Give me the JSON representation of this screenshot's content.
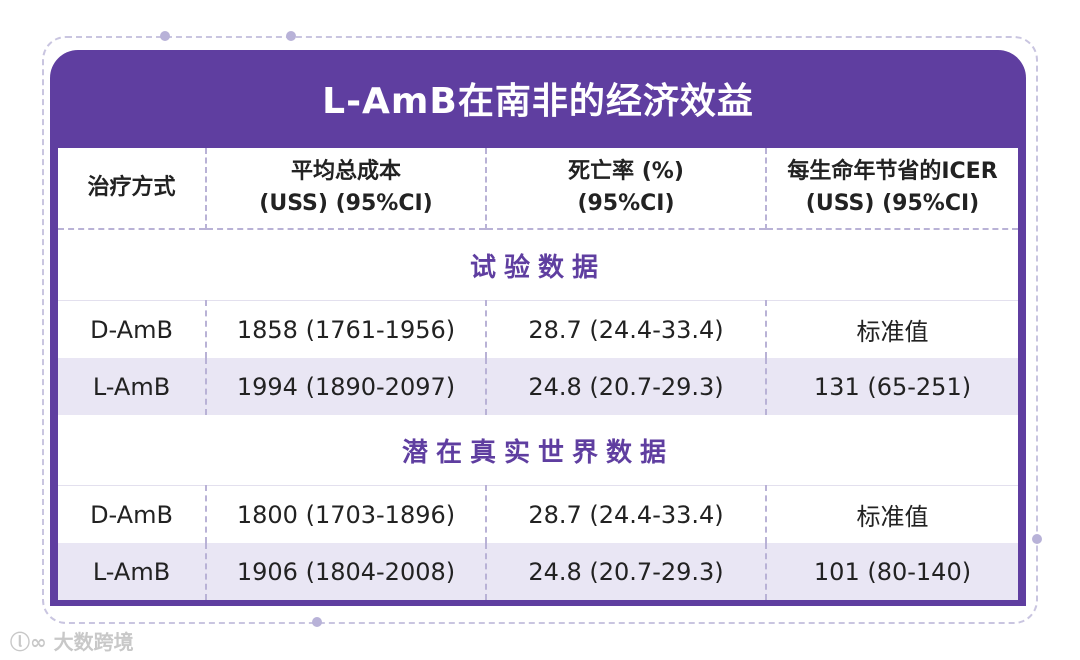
{
  "title": "L-AmB在南非的经济效益",
  "columns": [
    {
      "line1": "治疗方式",
      "line2": ""
    },
    {
      "line1": "平均总成本",
      "line2": "(USS) (95%CI)"
    },
    {
      "line1": "死亡率 (%)",
      "line2": "(95%CI)"
    },
    {
      "line1": "每生命年节省的ICER",
      "line2": "(USS) (95%CI)"
    }
  ],
  "sections": [
    {
      "label": "试验数据",
      "rows": [
        [
          "D-AmB",
          "1858 (1761-1956)",
          "28.7 (24.4-33.4)",
          "标准值"
        ],
        [
          "L-AmB",
          "1994 (1890-2097)",
          "24.8 (20.7-29.3)",
          "131 (65-251)"
        ]
      ]
    },
    {
      "label": "潜在真实世界数据",
      "rows": [
        [
          "D-AmB",
          "1800 (1703-1896)",
          "28.7 (24.4-33.4)",
          "标准值"
        ],
        [
          "L-AmB",
          "1906 (1804-2008)",
          "24.8 (20.7-29.3)",
          "101 (80-140)"
        ]
      ]
    }
  ],
  "watermark": "大数跨境",
  "colors": {
    "accent": "#5f3ea0",
    "alt_row": "#e9e6f4",
    "dash": "#b9b2d6"
  }
}
